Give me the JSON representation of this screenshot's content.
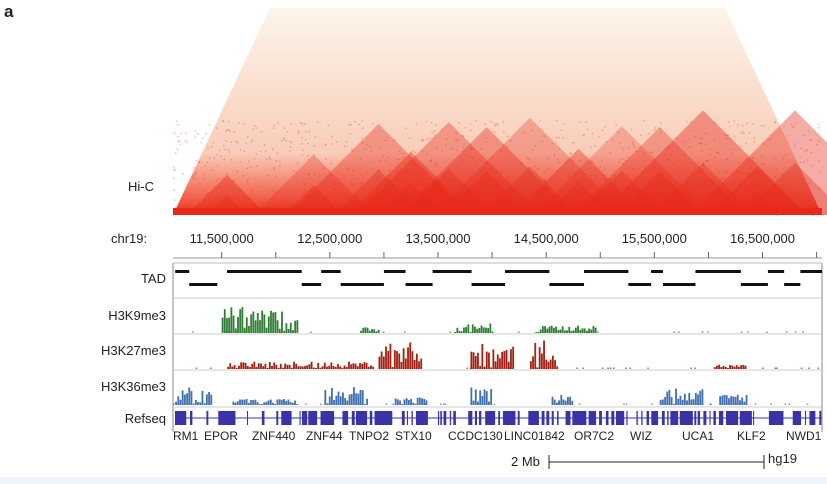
{
  "panel_label": "a",
  "hic": {
    "label": "Hi-C",
    "color_low": "#fdf3e6",
    "color_high": "#e8281a",
    "domain_peaks_mb": [
      11.55,
      12.35,
      12.95,
      13.25,
      13.6,
      13.95,
      14.35,
      14.8,
      15.2,
      15.55,
      15.95,
      16.45,
      16.8
    ]
  },
  "axis": {
    "chrom_label": "chr19:",
    "tick_labels": [
      "11,500,000",
      "12,500,000",
      "13,500,000",
      "14,500,000",
      "15,500,000",
      "16,500,000"
    ],
    "range_bp": [
      11050000,
      17050000
    ]
  },
  "tracks": [
    {
      "name": "TAD",
      "label": "TAD"
    },
    {
      "name": "h3k9me3",
      "label": "H3K9me3",
      "color": "#2e7d32"
    },
    {
      "name": "h3k27me3",
      "label": "H3K27me3",
      "color": "#a31f12"
    },
    {
      "name": "h3k36me3",
      "label": "H3K36me3",
      "color": "#3f6fb0"
    },
    {
      "name": "refseq",
      "label": "Refseq",
      "color": "#3a33a8"
    }
  ],
  "tad_domains_mb": [
    {
      "start": 11.07,
      "end": 11.2,
      "row": 0
    },
    {
      "start": 11.2,
      "end": 11.46,
      "row": 1
    },
    {
      "start": 11.55,
      "end": 12.24,
      "row": 0
    },
    {
      "start": 12.24,
      "end": 12.42,
      "row": 1
    },
    {
      "start": 12.42,
      "end": 12.6,
      "row": 0
    },
    {
      "start": 12.6,
      "end": 13.0,
      "row": 1
    },
    {
      "start": 13.0,
      "end": 13.2,
      "row": 0
    },
    {
      "start": 13.2,
      "end": 13.45,
      "row": 1
    },
    {
      "start": 13.45,
      "end": 13.81,
      "row": 0
    },
    {
      "start": 13.81,
      "end": 14.12,
      "row": 1
    },
    {
      "start": 14.12,
      "end": 14.53,
      "row": 0
    },
    {
      "start": 14.53,
      "end": 14.85,
      "row": 1
    },
    {
      "start": 14.85,
      "end": 15.26,
      "row": 0
    },
    {
      "start": 15.26,
      "end": 15.47,
      "row": 1
    },
    {
      "start": 15.47,
      "end": 15.58,
      "row": 0
    },
    {
      "start": 15.58,
      "end": 15.88,
      "row": 1
    }
  ],
  "signal_regions_mb": {
    "h3k9me3": [
      [
        11.5,
        12.2,
        0.9
      ],
      [
        12.78,
        12.95,
        0.2
      ],
      [
        13.65,
        14.0,
        0.35
      ],
      [
        14.4,
        14.95,
        0.25
      ]
    ],
    "h3k27me3": [
      [
        11.55,
        12.9,
        0.25
      ],
      [
        12.95,
        13.35,
        0.9
      ],
      [
        13.8,
        14.2,
        0.85
      ],
      [
        14.35,
        14.6,
        0.95
      ],
      [
        16.05,
        16.35,
        0.15
      ]
    ],
    "h3k36me3": [
      [
        11.07,
        11.4,
        0.6
      ],
      [
        11.6,
        12.2,
        0.2
      ],
      [
        12.45,
        12.85,
        0.6
      ],
      [
        13.1,
        13.4,
        0.3
      ],
      [
        13.8,
        14.0,
        1.0
      ],
      [
        14.55,
        14.75,
        0.5
      ],
      [
        15.55,
        15.95,
        0.55
      ],
      [
        16.1,
        16.35,
        0.4
      ]
    ]
  },
  "genes": [
    "RM1",
    "EPOR",
    "ZNF440",
    "ZNF44",
    "TNPO2",
    "STX10",
    "CCDC130",
    "LINC01842",
    "OR7C2",
    "WIZ",
    "UCA1",
    "KLF2",
    "NWD1"
  ],
  "scale_bar": {
    "label": "2 Mb",
    "assembly": "hg19",
    "length_mb": 2
  }
}
